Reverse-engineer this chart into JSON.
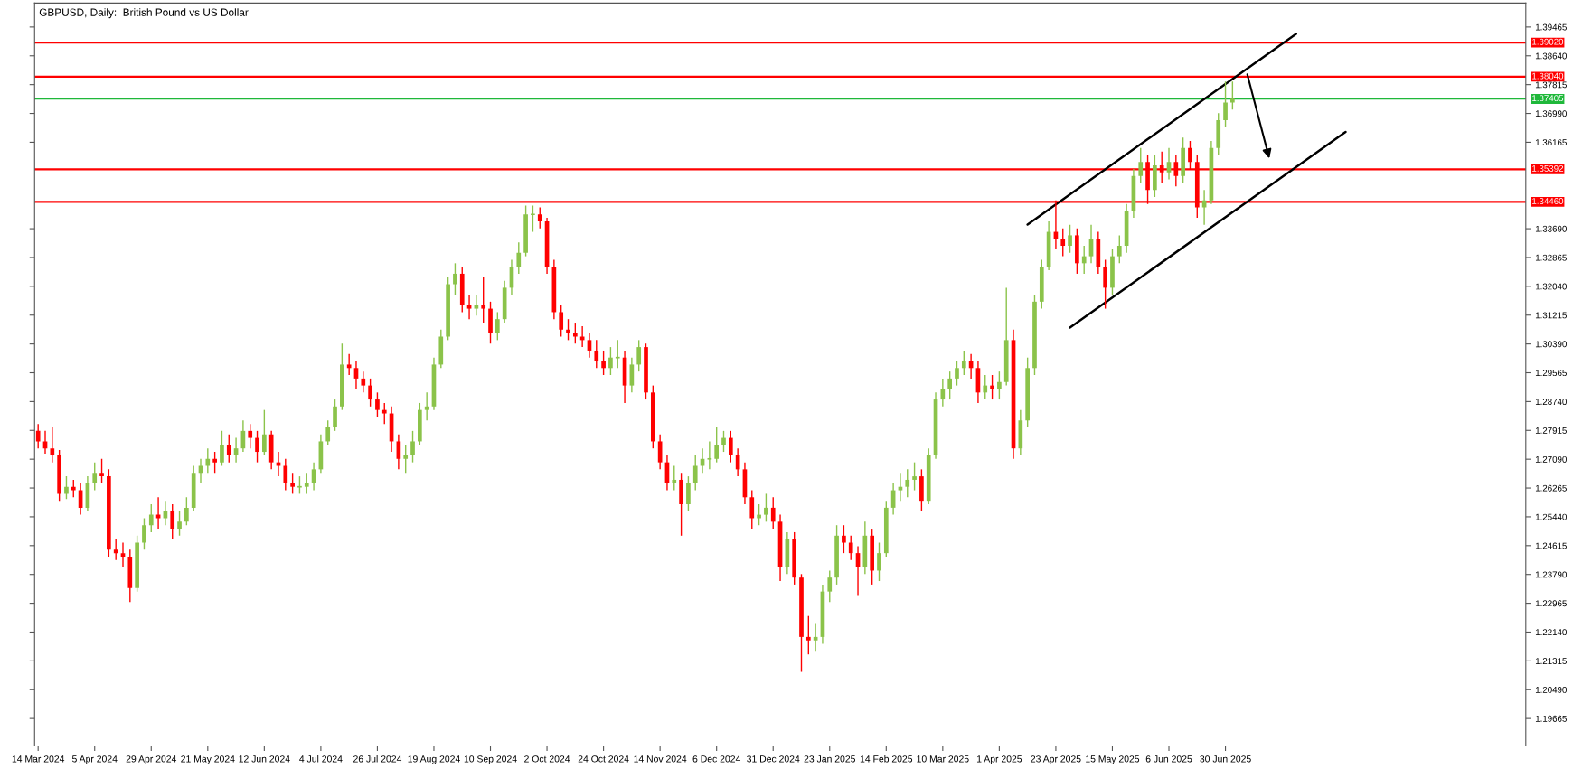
{
  "chart_data": {
    "type": "candlestick",
    "title": "GBPUSD, Daily:  British Pound vs US Dollar",
    "categories": [
      "14 Mar 2024",
      null,
      null,
      null,
      null,
      null,
      null,
      null,
      "5 Apr 2024",
      null,
      null,
      null,
      null,
      null,
      null,
      null,
      "29 Apr 2024",
      null,
      null,
      null,
      null,
      null,
      null,
      null,
      "21 May 2024",
      null,
      null,
      null,
      null,
      null,
      null,
      null,
      "12 Jun 2024",
      null,
      null,
      null,
      null,
      null,
      null,
      null,
      "4 Jul 2024",
      null,
      null,
      null,
      null,
      null,
      null,
      null,
      "26 Jul 2024",
      null,
      null,
      null,
      null,
      null,
      null,
      null,
      "19 Aug 2024",
      null,
      null,
      null,
      null,
      null,
      null,
      null,
      "10 Sep 2024",
      null,
      null,
      null,
      null,
      null,
      null,
      null,
      "2 Oct 2024",
      null,
      null,
      null,
      null,
      null,
      null,
      null,
      "24 Oct 2024",
      null,
      null,
      null,
      null,
      null,
      null,
      null,
      "14 Nov 2024",
      null,
      null,
      null,
      null,
      null,
      null,
      null,
      "6 Dec 2024",
      null,
      null,
      null,
      null,
      null,
      null,
      null,
      "31 Dec 2024",
      null,
      null,
      null,
      null,
      null,
      null,
      null,
      "23 Jan 2025",
      null,
      null,
      null,
      null,
      null,
      null,
      null,
      "14 Feb 2025",
      null,
      null,
      null,
      null,
      null,
      null,
      null,
      "10 Mar 2025",
      null,
      null,
      null,
      null,
      null,
      null,
      null,
      "1 Apr 2025",
      null,
      null,
      null,
      null,
      null,
      null,
      null,
      "23 Apr 2025",
      null,
      null,
      null,
      null,
      null,
      null,
      null,
      "15 May 2025",
      null,
      null,
      null,
      null,
      null,
      null,
      null,
      "6 Jun 2025",
      null,
      null,
      null,
      null,
      null,
      null,
      null,
      "30 Jun 2025",
      null,
      null,
      null,
      null,
      null,
      null,
      null,
      null,
      null,
      null,
      null,
      null,
      null,
      null,
      null,
      null,
      null,
      null,
      null,
      null,
      null,
      null,
      null,
      null,
      null,
      null,
      null,
      null,
      null,
      null,
      null,
      null,
      null,
      null,
      null,
      null,
      null,
      null,
      null,
      null,
      null,
      null
    ],
    "colors": [
      "#ff0000",
      "#ff0000",
      "#ff0000",
      "#ff0000",
      "#8bc34a",
      "#ff0000",
      "#ff0000",
      "#8bc34a",
      "#8bc34a",
      "#ff0000",
      "#ff0000",
      "#ff0000",
      "#ff0000",
      "#ff0000",
      "#8bc34a",
      "#8bc34a",
      "#8bc34a",
      "#ff0000",
      "#8bc34a",
      "#ff0000",
      "#8bc34a",
      "#8bc34a",
      "#8bc34a",
      "#8bc34a",
      "#8bc34a",
      "#ff0000",
      "#8bc34a",
      "#ff0000",
      "#8bc34a",
      "#8bc34a",
      "#ff0000",
      "#ff0000",
      "#8bc34a",
      "#ff0000",
      "#ff0000",
      "#ff0000",
      "#ff0000",
      "#8bc34a",
      "#8bc34a",
      "#8bc34a",
      "#8bc34a",
      "#8bc34a",
      "#8bc34a",
      "#8bc34a",
      "#ff0000",
      "#ff0000",
      "#ff0000",
      "#ff0000",
      "#ff0000",
      "#ff0000",
      "#ff0000",
      "#ff0000",
      "#8bc34a",
      "#8bc34a",
      "#8bc34a",
      "#8bc34a",
      "#8bc34a",
      "#8bc34a",
      "#8bc34a",
      "#8bc34a",
      "#ff0000",
      "#ff0000",
      "#8bc34a",
      "#ff0000",
      "#ff0000",
      "#8bc34a",
      "#8bc34a",
      "#8bc34a",
      "#8bc34a",
      "#8bc34a",
      "#8bc34a",
      "#ff0000",
      "#ff0000",
      "#ff0000",
      "#ff0000",
      "#ff0000",
      "#ff0000",
      "#ff0000",
      "#ff0000",
      "#ff0000",
      "#ff0000",
      "#8bc34a",
      "#8bc34a",
      "#ff0000",
      "#8bc34a",
      "#8bc34a",
      "#ff0000",
      "#ff0000",
      "#ff0000",
      "#ff0000",
      "#8bc34a",
      "#ff0000",
      "#8bc34a",
      "#8bc34a",
      "#8bc34a",
      "#8bc34a",
      "#8bc34a",
      "#8bc34a",
      "#ff0000",
      "#ff0000",
      "#ff0000",
      "#ff0000",
      "#8bc34a",
      "#8bc34a",
      "#ff0000",
      "#ff0000",
      "#8bc34a",
      "#ff0000",
      "#ff0000",
      "#ff0000",
      "#8bc34a",
      "#8bc34a",
      "#8bc34a",
      "#8bc34a",
      "#ff0000",
      "#ff0000",
      "#ff0000",
      "#8bc34a",
      "#ff0000",
      "#8bc34a",
      "#8bc34a",
      "#8bc34a",
      "#8bc34a",
      "#8bc34a",
      "#8bc34a",
      "#ff0000",
      "#8bc34a",
      "#8bc34a",
      "#8bc34a",
      "#8bc34a",
      "#8bc34a",
      "#8bc34a",
      "#ff0000",
      "#ff0000",
      "#8bc34a",
      "#ff0000",
      "#8bc34a",
      "#8bc34a",
      "#ff0000",
      "#8bc34a",
      "#8bc34a",
      "#8bc34a",
      "#8bc34a",
      "#8bc34a",
      "#ff0000",
      "#ff0000",
      "#8bc34a",
      "#ff0000",
      "#8bc34a",
      "#8bc34a",
      "#ff0000",
      "#ff0000",
      "#8bc34a",
      "#8bc34a",
      "#8bc34a",
      "#8bc34a",
      "#8bc34a",
      "#ff0000",
      "#8bc34a",
      "#ff0000",
      "#8bc34a",
      "#ff0000",
      "#8bc34a",
      "#ff0000",
      "#ff0000",
      "#8bc34a",
      "#8bc34a",
      "#8bc34a",
      "#8bc34a",
      "#8bc34a",
      null,
      null,
      null,
      null,
      null,
      null,
      null,
      null,
      null,
      null,
      null,
      null,
      null,
      null,
      null,
      null,
      null,
      null,
      null,
      null,
      null,
      null,
      null,
      null,
      null,
      null,
      null,
      null,
      null,
      null,
      null,
      null,
      null,
      null,
      null,
      null,
      null,
      null,
      null,
      null,
      null
    ],
    "ohlc": [
      [
        1.279,
        1.281,
        1.274,
        1.276
      ],
      [
        1.276,
        1.279,
        1.2725,
        1.274
      ],
      [
        1.274,
        1.28,
        1.27,
        1.272
      ],
      [
        1.272,
        1.2735,
        1.259,
        1.261
      ],
      [
        1.261,
        1.266,
        1.2595,
        1.263
      ],
      [
        1.263,
        1.265,
        1.26,
        1.262
      ],
      [
        1.262,
        1.264,
        1.255,
        1.257
      ],
      [
        1.257,
        1.266,
        1.256,
        1.264
      ],
      [
        1.264,
        1.27,
        1.262,
        1.267
      ],
      [
        1.267,
        1.271,
        1.264,
        1.266
      ],
      [
        1.266,
        1.268,
        1.243,
        1.245
      ],
      [
        1.245,
        1.248,
        1.242,
        1.244
      ],
      [
        1.244,
        1.247,
        1.24,
        1.243
      ],
      [
        1.243,
        1.245,
        1.23,
        1.234
      ],
      [
        1.234,
        1.249,
        1.233,
        1.247
      ],
      [
        1.247,
        1.254,
        1.245,
        1.252
      ],
      [
        1.252,
        1.258,
        1.25,
        1.255
      ],
      [
        1.255,
        1.26,
        1.251,
        1.254
      ],
      [
        1.254,
        1.259,
        1.252,
        1.256
      ],
      [
        1.256,
        1.258,
        1.248,
        1.251
      ],
      [
        1.251,
        1.256,
        1.249,
        1.253
      ],
      [
        1.253,
        1.26,
        1.252,
        1.257
      ],
      [
        1.257,
        1.269,
        1.256,
        1.267
      ],
      [
        1.267,
        1.271,
        1.264,
        1.269
      ],
      [
        1.269,
        1.274,
        1.267,
        1.271
      ],
      [
        1.271,
        1.273,
        1.267,
        1.27
      ],
      [
        1.27,
        1.279,
        1.269,
        1.275
      ],
      [
        1.275,
        1.278,
        1.27,
        1.272
      ],
      [
        1.272,
        1.277,
        1.27,
        1.274
      ],
      [
        1.274,
        1.282,
        1.273,
        1.279
      ],
      [
        1.279,
        1.281,
        1.274,
        1.277
      ],
      [
        1.277,
        1.279,
        1.27,
        1.273
      ],
      [
        1.273,
        1.285,
        1.272,
        1.278
      ],
      [
        1.278,
        1.279,
        1.268,
        1.27
      ],
      [
        1.27,
        1.273,
        1.266,
        1.269
      ],
      [
        1.269,
        1.271,
        1.262,
        1.264
      ],
      [
        1.264,
        1.267,
        1.261,
        1.263
      ],
      [
        1.263,
        1.266,
        1.261,
        1.263
      ],
      [
        1.263,
        1.267,
        1.261,
        1.264
      ],
      [
        1.264,
        1.27,
        1.262,
        1.268
      ],
      [
        1.268,
        1.278,
        1.267,
        1.276
      ],
      [
        1.276,
        1.282,
        1.275,
        1.28
      ],
      [
        1.28,
        1.288,
        1.279,
        1.286
      ],
      [
        1.286,
        1.304,
        1.285,
        1.298
      ],
      [
        1.298,
        1.301,
        1.295,
        1.297
      ],
      [
        1.297,
        1.299,
        1.291,
        1.294
      ],
      [
        1.294,
        1.296,
        1.29,
        1.292
      ],
      [
        1.292,
        1.294,
        1.286,
        1.288
      ],
      [
        1.288,
        1.29,
        1.283,
        1.285
      ],
      [
        1.285,
        1.287,
        1.281,
        1.284
      ],
      [
        1.284,
        1.286,
        1.273,
        1.276
      ],
      [
        1.276,
        1.278,
        1.268,
        1.271
      ],
      [
        1.271,
        1.275,
        1.267,
        1.272
      ],
      [
        1.272,
        1.279,
        1.27,
        1.276
      ],
      [
        1.276,
        1.287,
        1.275,
        1.285
      ],
      [
        1.285,
        1.29,
        1.282,
        1.286
      ],
      [
        1.286,
        1.3,
        1.285,
        1.298
      ],
      [
        1.298,
        1.308,
        1.297,
        1.306
      ],
      [
        1.306,
        1.323,
        1.305,
        1.321
      ],
      [
        1.321,
        1.327,
        1.318,
        1.324
      ],
      [
        1.324,
        1.326,
        1.313,
        1.315
      ],
      [
        1.315,
        1.318,
        1.311,
        1.314
      ],
      [
        1.314,
        1.318,
        1.312,
        1.315
      ],
      [
        1.315,
        1.323,
        1.31,
        1.314
      ],
      [
        1.314,
        1.316,
        1.304,
        1.307
      ],
      [
        1.307,
        1.313,
        1.305,
        1.311
      ],
      [
        1.311,
        1.322,
        1.31,
        1.32
      ],
      [
        1.32,
        1.328,
        1.318,
        1.326
      ],
      [
        1.326,
        1.333,
        1.324,
        1.33
      ],
      [
        1.33,
        1.3435,
        1.329,
        1.341
      ],
      [
        1.341,
        1.3435,
        1.336,
        1.341
      ],
      [
        1.341,
        1.343,
        1.337,
        1.339
      ],
      [
        1.339,
        1.34,
        1.324,
        1.326
      ],
      [
        1.326,
        1.328,
        1.311,
        1.313
      ],
      [
        1.313,
        1.315,
        1.306,
        1.308
      ],
      [
        1.308,
        1.311,
        1.305,
        1.307
      ],
      [
        1.307,
        1.31,
        1.304,
        1.306
      ],
      [
        1.306,
        1.309,
        1.303,
        1.305
      ],
      [
        1.305,
        1.307,
        1.3,
        1.302
      ],
      [
        1.302,
        1.305,
        1.297,
        1.299
      ],
      [
        1.299,
        1.302,
        1.295,
        1.297
      ],
      [
        1.297,
        1.303,
        1.295,
        1.3
      ],
      [
        1.3,
        1.305,
        1.297,
        1.3
      ],
      [
        1.3,
        1.302,
        1.287,
        1.292
      ],
      [
        1.292,
        1.3,
        1.29,
        1.298
      ],
      [
        1.298,
        1.305,
        1.296,
        1.303
      ],
      [
        1.303,
        1.304,
        1.288,
        1.29
      ],
      [
        1.29,
        1.292,
        1.274,
        1.276
      ],
      [
        1.276,
        1.278,
        1.268,
        1.27
      ],
      [
        1.27,
        1.272,
        1.262,
        1.264
      ],
      [
        1.264,
        1.269,
        1.262,
        1.265
      ],
      [
        1.265,
        1.267,
        1.249,
        1.258
      ],
      [
        1.258,
        1.266,
        1.256,
        1.264
      ],
      [
        1.264,
        1.272,
        1.262,
        1.269
      ],
      [
        1.269,
        1.274,
        1.267,
        1.271
      ],
      [
        1.271,
        1.276,
        1.268,
        1.271
      ],
      [
        1.271,
        1.28,
        1.27,
        1.275
      ],
      [
        1.275,
        1.279,
        1.273,
        1.277
      ],
      [
        1.277,
        1.279,
        1.27,
        1.272
      ],
      [
        1.272,
        1.274,
        1.266,
        1.268
      ],
      [
        1.268,
        1.27,
        1.258,
        1.26
      ],
      [
        1.26,
        1.262,
        1.251,
        1.254
      ],
      [
        1.254,
        1.258,
        1.252,
        1.255
      ],
      [
        1.255,
        1.261,
        1.253,
        1.257
      ],
      [
        1.257,
        1.26,
        1.251,
        1.253
      ],
      [
        1.253,
        1.255,
        1.236,
        1.24
      ],
      [
        1.24,
        1.25,
        1.238,
        1.248
      ],
      [
        1.248,
        1.25,
        1.235,
        1.237
      ],
      [
        1.237,
        1.238,
        1.21,
        1.22
      ],
      [
        1.22,
        1.226,
        1.215,
        1.219
      ],
      [
        1.219,
        1.224,
        1.216,
        1.22
      ],
      [
        1.22,
        1.235,
        1.218,
        1.233
      ],
      [
        1.233,
        1.239,
        1.23,
        1.237
      ],
      [
        1.237,
        1.252,
        1.235,
        1.249
      ],
      [
        1.249,
        1.252,
        1.244,
        1.247
      ],
      [
        1.247,
        1.249,
        1.242,
        1.244
      ],
      [
        1.244,
        1.246,
        1.232,
        1.24
      ],
      [
        1.24,
        1.253,
        1.238,
        1.249
      ],
      [
        1.249,
        1.251,
        1.235,
        1.239
      ],
      [
        1.239,
        1.247,
        1.236,
        1.244
      ],
      [
        1.244,
        1.259,
        1.243,
        1.257
      ],
      [
        1.257,
        1.264,
        1.255,
        1.262
      ],
      [
        1.262,
        1.267,
        1.259,
        1.263
      ],
      [
        1.263,
        1.268,
        1.26,
        1.265
      ],
      [
        1.265,
        1.27,
        1.262,
        1.266
      ],
      [
        1.266,
        1.268,
        1.256,
        1.259
      ],
      [
        1.259,
        1.274,
        1.258,
        1.272
      ],
      [
        1.272,
        1.29,
        1.271,
        1.288
      ],
      [
        1.288,
        1.294,
        1.286,
        1.291
      ],
      [
        1.291,
        1.296,
        1.288,
        1.294
      ],
      [
        1.294,
        1.299,
        1.292,
        1.297
      ],
      [
        1.297,
        1.302,
        1.295,
        1.299
      ],
      [
        1.299,
        1.301,
        1.294,
        1.297
      ],
      [
        1.297,
        1.299,
        1.287,
        1.29
      ],
      [
        1.29,
        1.295,
        1.288,
        1.292
      ],
      [
        1.292,
        1.295,
        1.288,
        1.291
      ],
      [
        1.291,
        1.296,
        1.288,
        1.293
      ],
      [
        1.293,
        1.32,
        1.292,
        1.305
      ],
      [
        1.305,
        1.308,
        1.271,
        1.274
      ],
      [
        1.274,
        1.285,
        1.272,
        1.282
      ],
      [
        1.282,
        1.3,
        1.28,
        1.297
      ],
      [
        1.297,
        1.318,
        1.295,
        1.316
      ],
      [
        1.316,
        1.328,
        1.314,
        1.326
      ],
      [
        1.326,
        1.339,
        1.325,
        1.336
      ],
      [
        1.336,
        1.345,
        1.331,
        1.334
      ],
      [
        1.334,
        1.337,
        1.329,
        1.332
      ],
      [
        1.332,
        1.338,
        1.33,
        1.335
      ],
      [
        1.335,
        1.337,
        1.324,
        1.327
      ],
      [
        1.327,
        1.332,
        1.324,
        1.329
      ],
      [
        1.329,
        1.338,
        1.327,
        1.334
      ],
      [
        1.334,
        1.336,
        1.324,
        1.326
      ],
      [
        1.326,
        1.328,
        1.314,
        1.32
      ],
      [
        1.32,
        1.331,
        1.318,
        1.329
      ],
      [
        1.329,
        1.335,
        1.327,
        1.332
      ],
      [
        1.332,
        1.344,
        1.33,
        1.342
      ],
      [
        1.342,
        1.354,
        1.34,
        1.352
      ],
      [
        1.352,
        1.36,
        1.35,
        1.356
      ],
      [
        1.356,
        1.358,
        1.344,
        1.348
      ],
      [
        1.348,
        1.358,
        1.346,
        1.355
      ],
      [
        1.355,
        1.359,
        1.35,
        1.353
      ],
      [
        1.353,
        1.36,
        1.351,
        1.356
      ],
      [
        1.356,
        1.358,
        1.349,
        1.352
      ],
      [
        1.352,
        1.363,
        1.35,
        1.36
      ],
      [
        1.36,
        1.362,
        1.354,
        1.356
      ],
      [
        1.356,
        1.358,
        1.34,
        1.343
      ],
      [
        1.343,
        1.348,
        1.338,
        1.345
      ],
      [
        1.345,
        1.362,
        1.344,
        1.36
      ],
      [
        1.36,
        1.37,
        1.358,
        1.368
      ],
      [
        1.368,
        1.379,
        1.366,
        1.373
      ],
      [
        1.373,
        1.379,
        1.371,
        1.3741
      ],
      null,
      null,
      null,
      null,
      null,
      null,
      null,
      null,
      null,
      null,
      null,
      null,
      null,
      null,
      null,
      null,
      null,
      null,
      null,
      null,
      null,
      null,
      null,
      null,
      null,
      null,
      null,
      null,
      null,
      null,
      null,
      null,
      null,
      null,
      null,
      null,
      null,
      null,
      null,
      null,
      null
    ],
    "series": [
      {
        "type": "line",
        "color": "#000000",
        "values": [
          null,
          null,
          null,
          null,
          null,
          null,
          null,
          null,
          null,
          null,
          null,
          null,
          null,
          null,
          null,
          null,
          null,
          null,
          null,
          null,
          null,
          null,
          null,
          null,
          null,
          null,
          null,
          null,
          null,
          null,
          null,
          null,
          null,
          null,
          null,
          null,
          null,
          null,
          null,
          null,
          null,
          null,
          null,
          null,
          null,
          null,
          null,
          null,
          null,
          null,
          null,
          null,
          null,
          null,
          null,
          null,
          null,
          null,
          null,
          null,
          null,
          null,
          null,
          null,
          null,
          null,
          null,
          null,
          null,
          null,
          null,
          null,
          null,
          null,
          null,
          null,
          null,
          null,
          null,
          null,
          null,
          null,
          null,
          null,
          null,
          null,
          null,
          null,
          null,
          null,
          null,
          null,
          null,
          null,
          null,
          null,
          null,
          null,
          null,
          null,
          null,
          null,
          null,
          null,
          null,
          null,
          null,
          null,
          null,
          null,
          null,
          null,
          null,
          null,
          null,
          null,
          null,
          null,
          null,
          null,
          null,
          null,
          null,
          null,
          null,
          null,
          null,
          null,
          null,
          null,
          null,
          null,
          null,
          null,
          null,
          null,
          null,
          null,
          null,
          null,
          1.3381,
          null,
          null,
          null,
          null,
          null,
          null,
          null,
          null,
          null,
          null,
          null,
          null,
          null,
          null,
          null,
          null,
          null,
          null,
          null,
          null,
          null,
          null,
          null,
          null,
          null,
          null,
          null,
          null,
          null,
          null,
          null,
          null,
          null,
          null,
          null,
          null,
          null,
          1.3927,
          null,
          null,
          null,
          null,
          null,
          null,
          null,
          null,
          null,
          null,
          null,
          null,
          null,
          null,
          null,
          null,
          null,
          null,
          null,
          null,
          null,
          null,
          null,
          null,
          null,
          null,
          null,
          null,
          null,
          null,
          null,
          null
        ]
      },
      {
        "type": "line",
        "color": "#000000",
        "values": [
          null,
          null,
          null,
          null,
          null,
          null,
          null,
          null,
          null,
          null,
          null,
          null,
          null,
          null,
          null,
          null,
          null,
          null,
          null,
          null,
          null,
          null,
          null,
          null,
          null,
          null,
          null,
          null,
          null,
          null,
          null,
          null,
          null,
          null,
          null,
          null,
          null,
          null,
          null,
          null,
          null,
          null,
          null,
          null,
          null,
          null,
          null,
          null,
          null,
          null,
          null,
          null,
          null,
          null,
          null,
          null,
          null,
          null,
          null,
          null,
          null,
          null,
          null,
          null,
          null,
          null,
          null,
          null,
          null,
          null,
          null,
          null,
          null,
          null,
          null,
          null,
          null,
          null,
          null,
          null,
          null,
          null,
          null,
          null,
          null,
          null,
          null,
          null,
          null,
          null,
          null,
          null,
          null,
          null,
          null,
          null,
          null,
          null,
          null,
          null,
          null,
          null,
          null,
          null,
          null,
          null,
          null,
          null,
          null,
          null,
          null,
          null,
          null,
          null,
          null,
          null,
          null,
          null,
          null,
          null,
          null,
          null,
          null,
          null,
          null,
          null,
          null,
          null,
          null,
          null,
          null,
          null,
          null,
          null,
          null,
          null,
          null,
          null,
          null,
          null,
          null,
          null,
          null,
          null,
          null,
          null,
          1.3086,
          null,
          null,
          null,
          null,
          null,
          null,
          null,
          null,
          null,
          null,
          null,
          null,
          null,
          null,
          null,
          null,
          null,
          null,
          null,
          null,
          null,
          null,
          null,
          null,
          null,
          null,
          null,
          null,
          null,
          null,
          null,
          null,
          null,
          null,
          null,
          null,
          null,
          null,
          1.3646,
          null,
          null,
          null,
          null,
          null,
          null,
          null,
          null,
          null,
          null,
          null,
          null,
          null,
          null,
          null,
          null,
          null,
          null,
          null,
          null,
          null,
          null,
          null,
          null,
          null
        ]
      }
    ],
    "ylim": [
      1.1888,
      1.4015
    ],
    "yticks": [
      {
        "value": 1.19665,
        "label": "1.19665"
      },
      {
        "value": 1.2049,
        "label": "1.20490"
      },
      {
        "value": 1.21315,
        "label": "1.21315"
      },
      {
        "value": 1.2214,
        "label": "1.22140"
      },
      {
        "value": 1.22965,
        "label": "1.22965"
      },
      {
        "value": 1.2379,
        "label": "1.23790"
      },
      {
        "value": 1.24615,
        "label": "1.24615"
      },
      {
        "value": 1.2544,
        "label": "1.25440"
      },
      {
        "value": 1.26265,
        "label": "1.26265"
      },
      {
        "value": 1.2709,
        "label": "1.27090"
      },
      {
        "value": 1.27915,
        "label": "1.27915"
      },
      {
        "value": 1.2874,
        "label": "1.28740"
      },
      {
        "value": 1.29565,
        "label": "1.29565"
      },
      {
        "value": 1.3039,
        "label": "1.30390"
      },
      {
        "value": 1.31215,
        "label": "1.31215"
      },
      {
        "value": 1.3204,
        "label": "1.32040"
      },
      {
        "value": 1.32865,
        "label": "1.32865"
      },
      {
        "value": 1.3369,
        "label": "1.33690"
      },
      {
        "value": 1.36165,
        "label": "1.36165"
      },
      {
        "value": 1.3699,
        "label": "1.36990"
      },
      {
        "value": 1.37815,
        "label": "1.37815"
      },
      {
        "value": 1.3864,
        "label": "1.38640"
      },
      {
        "value": 1.39465,
        "label": "1.39465"
      }
    ],
    "ref_lines": [
      {
        "axis": "y",
        "value": 1.3902,
        "label": "1.39020",
        "color": "#ff0000"
      },
      {
        "axis": "y",
        "value": 1.3804,
        "label": "1.38040",
        "color": "#ff0000"
      },
      {
        "axis": "y",
        "value": 1.37405,
        "label": "1.37405",
        "color": "#1fb83a"
      },
      {
        "axis": "y",
        "value": 1.35392,
        "label": "1.35392",
        "color": "#ff0000"
      },
      {
        "axis": "y",
        "value": 1.3446,
        "label": "1.34460",
        "color": "#ff0000"
      }
    ],
    "grid": false
  }
}
